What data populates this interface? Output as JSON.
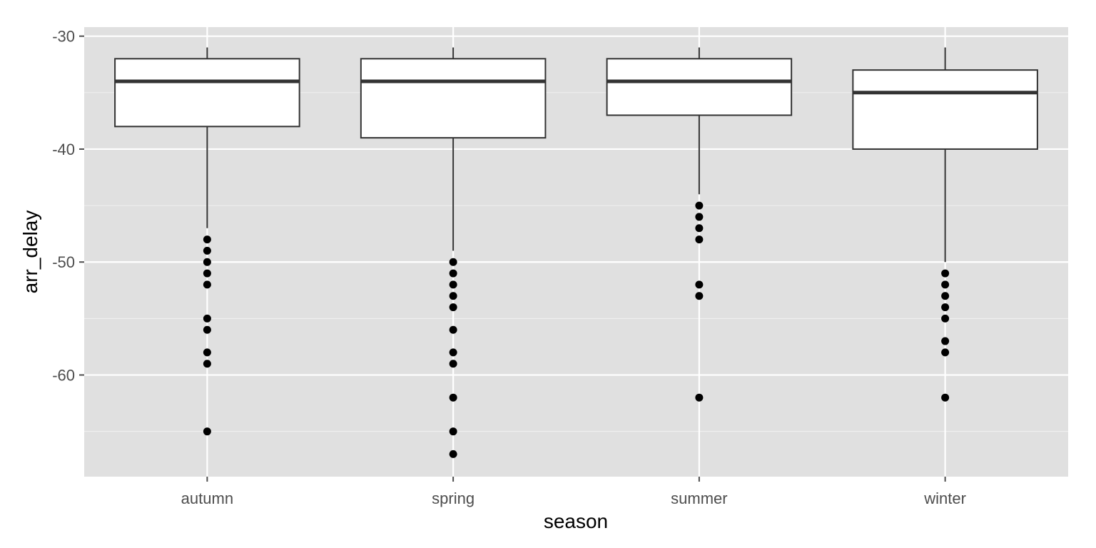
{
  "chart_data": {
    "type": "boxplot",
    "title": "",
    "xlabel": "season",
    "ylabel": "arr_delay",
    "categories": [
      "autumn",
      "spring",
      "summer",
      "winter"
    ],
    "ylim": [
      -69,
      -29.2
    ],
    "y_ticks": [
      -30,
      -40,
      -50,
      -60
    ],
    "y_minor_ticks": [
      -35,
      -45,
      -55,
      -65
    ],
    "grid": true,
    "legend": "none",
    "colors": {
      "panel_background": "#e0e0e0",
      "grid": "#ffffff",
      "box_fill": "#ffffff",
      "box_stroke": "#333333",
      "point": "#000000",
      "tick_label": "#4d4d4d",
      "axis_title": "#000000"
    },
    "boxes": [
      {
        "category": "autumn",
        "whisker_low": -47,
        "q1": -38,
        "median": -34,
        "q3": -32,
        "whisker_high": -31,
        "outliers": [
          -48,
          -49,
          -50,
          -51,
          -52,
          -55,
          -56,
          -58,
          -59,
          -65
        ]
      },
      {
        "category": "spring",
        "whisker_low": -49,
        "q1": -39,
        "median": -34,
        "q3": -32,
        "whisker_high": -31,
        "outliers": [
          -50,
          -51,
          -52,
          -53,
          -54,
          -56,
          -58,
          -59,
          -62,
          -65,
          -67
        ]
      },
      {
        "category": "summer",
        "whisker_low": -44,
        "q1": -37,
        "median": -34,
        "q3": -32,
        "whisker_high": -31,
        "outliers": [
          -45,
          -46,
          -47,
          -48,
          -52,
          -53,
          -62
        ]
      },
      {
        "category": "winter",
        "whisker_low": -50,
        "q1": -40,
        "median": -35,
        "q3": -33,
        "whisker_high": -31,
        "outliers": [
          -51,
          -52,
          -53,
          -54,
          -55,
          -57,
          -58,
          -62
        ]
      }
    ]
  }
}
